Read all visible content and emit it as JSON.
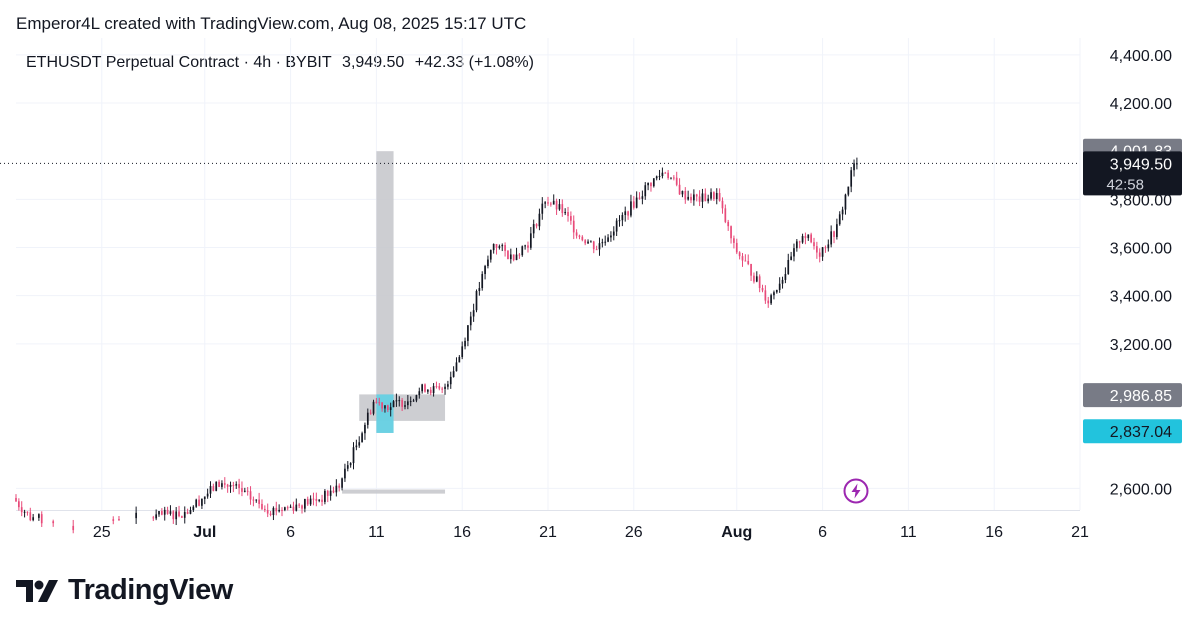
{
  "header": {
    "attribution": "Emperor4L created with TradingView.com, Aug 08, 2025 15:17 UTC"
  },
  "legend": {
    "title": "ETHUSDT Perpetual Contract · 4h · BYBIT",
    "last": "3,949.50",
    "change": "+42.33 (+1.08%)"
  },
  "footer": {
    "brand": "TradingView"
  },
  "colors": {
    "up": "#131722",
    "down": "#e84a79",
    "grid": "#f0f3fa",
    "text": "#131722",
    "zone": "#c4c6ca",
    "highlight": "#5bd1e6"
  },
  "icons": [
    "tradingview-logo-icon",
    "lightning-bolt-icon"
  ],
  "chart_data": {
    "type": "candlestick",
    "interval": "4h",
    "title": "ETHUSDT Perpetual Contract · 4h · BYBIT",
    "y_axis": {
      "ticks": [
        "2,600.00",
        "3,200.00",
        "3,400.00",
        "3,600.00",
        "3,800.00",
        "4,200.00",
        "4,400.00"
      ],
      "tick_values": [
        2600,
        3200,
        3400,
        3600,
        3800,
        4200,
        4400
      ],
      "ylim": [
        2510,
        4470
      ]
    },
    "x_axis": {
      "ticks": [
        "25",
        "Jul",
        "6",
        "11",
        "16",
        "21",
        "26",
        "Aug",
        "6",
        "11",
        "16",
        "21"
      ],
      "tick_dates": [
        "2025-06-25",
        "2025-07-01",
        "2025-07-06",
        "2025-07-11",
        "2025-07-16",
        "2025-07-21",
        "2025-07-26",
        "2025-08-01",
        "2025-08-06",
        "2025-08-11",
        "2025-08-16",
        "2025-08-21"
      ],
      "bold_ticks": [
        "Jul",
        "Aug"
      ],
      "xlim": [
        "2025-06-20",
        "2025-08-21"
      ]
    },
    "price_labels": [
      {
        "text": "4,001.83",
        "value": 4001.83,
        "bg": "#787b86",
        "fg": "#ffffff"
      },
      {
        "text": "3,949.50",
        "value": 3949.5,
        "bg": "#131722",
        "fg": "#ffffff",
        "sub": "42:58"
      },
      {
        "text": "2,986.85",
        "value": 2986.85,
        "bg": "#787b86",
        "fg": "#ffffff"
      },
      {
        "text": "2,837.04",
        "value": 2837.04,
        "bg": "#22c3dd",
        "fg": "#131722"
      }
    ],
    "last_price_line": 3949.5,
    "zones": [
      {
        "from": "2025-07-11",
        "to": "2025-07-12",
        "low": 2830,
        "high": 4000,
        "color": "#c4c6ca"
      },
      {
        "from": "2025-07-10",
        "to": "2025-07-15",
        "low": 2880,
        "high": 2990,
        "color": "#c4c6ca"
      },
      {
        "from": "2025-07-11",
        "to": "2025-07-12",
        "low": 2830,
        "high": 2990,
        "color": "#5bd1e6"
      },
      {
        "from": "2025-07-09",
        "to": "2025-07-15",
        "low": 2578,
        "high": 2595,
        "color": "#c4c6ca"
      }
    ],
    "series": [
      {
        "close_points": [
          [
            "2025-06-20",
            2560
          ],
          [
            "2025-06-21",
            2480
          ],
          [
            "2025-06-24",
            2430
          ],
          [
            "2025-06-25",
            2470
          ],
          [
            "2025-06-28",
            2480
          ],
          [
            "2025-06-30",
            2500
          ],
          [
            "2025-07-01",
            2560
          ],
          [
            "2025-07-02",
            2620
          ],
          [
            "2025-07-03",
            2600
          ],
          [
            "2025-07-04",
            2550
          ],
          [
            "2025-07-05",
            2510
          ],
          [
            "2025-07-06",
            2520
          ],
          [
            "2025-07-07",
            2540
          ],
          [
            "2025-07-08",
            2560
          ],
          [
            "2025-07-09",
            2610
          ],
          [
            "2025-07-10",
            2780
          ],
          [
            "2025-07-11",
            2960
          ],
          [
            "2025-07-12",
            2940
          ],
          [
            "2025-07-13",
            2970
          ],
          [
            "2025-07-14",
            3020
          ],
          [
            "2025-07-15",
            3000
          ],
          [
            "2025-07-16",
            3150
          ],
          [
            "2025-07-17",
            3400
          ],
          [
            "2025-07-18",
            3620
          ],
          [
            "2025-07-19",
            3560
          ],
          [
            "2025-07-20",
            3620
          ],
          [
            "2025-07-21",
            3800
          ],
          [
            "2025-07-22",
            3750
          ],
          [
            "2025-07-23",
            3650
          ],
          [
            "2025-07-24",
            3600
          ],
          [
            "2025-07-25",
            3680
          ],
          [
            "2025-07-26",
            3770
          ],
          [
            "2025-07-27",
            3860
          ],
          [
            "2025-07-28",
            3920
          ],
          [
            "2025-07-29",
            3820
          ],
          [
            "2025-07-30",
            3800
          ],
          [
            "2025-07-31",
            3820
          ],
          [
            "2025-08-01",
            3600
          ],
          [
            "2025-08-02",
            3500
          ],
          [
            "2025-08-03",
            3380
          ],
          [
            "2025-08-04",
            3500
          ],
          [
            "2025-08-05",
            3660
          ],
          [
            "2025-08-06",
            3580
          ],
          [
            "2025-08-07",
            3680
          ],
          [
            "2025-08-08",
            3949.5
          ]
        ]
      }
    ]
  }
}
